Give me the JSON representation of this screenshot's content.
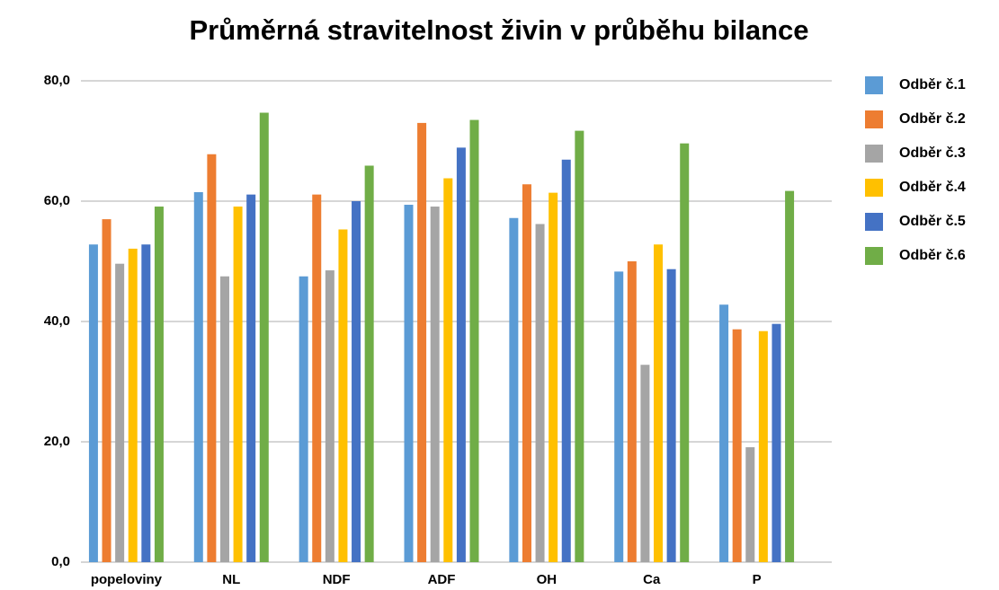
{
  "chart_data": {
    "type": "bar",
    "title": "Průměrná stravitelnost živin v průběhu bilance",
    "categories": [
      "popeloviny",
      "NL",
      "NDF",
      "ADF",
      "OH",
      "Ca",
      "P"
    ],
    "series": [
      {
        "name": "Odběr č.1",
        "color": "#5b9bd5",
        "values": [
          52.8,
          61.5,
          47.5,
          59.4,
          57.2,
          48.3,
          42.8
        ]
      },
      {
        "name": "Odběr č.2",
        "color": "#ed7d31",
        "values": [
          57.0,
          67.8,
          61.1,
          73.0,
          62.8,
          50.0,
          38.7
        ]
      },
      {
        "name": "Odběr č.3",
        "color": "#a5a5a5",
        "values": [
          49.6,
          47.5,
          48.5,
          59.1,
          56.2,
          32.8,
          19.1
        ]
      },
      {
        "name": "Odběr č.4",
        "color": "#ffc000",
        "values": [
          52.1,
          59.1,
          55.3,
          63.8,
          61.4,
          52.8,
          38.4
        ]
      },
      {
        "name": "Odběr č.5",
        "color": "#4472c4",
        "values": [
          52.8,
          61.1,
          60.0,
          68.9,
          66.9,
          48.7,
          39.6
        ]
      },
      {
        "name": "Odběr č.6",
        "color": "#70ad47",
        "values": [
          59.1,
          74.7,
          65.9,
          73.5,
          71.7,
          69.6,
          61.7
        ]
      }
    ],
    "ylim": [
      0,
      80
    ],
    "yticks": [
      {
        "value": 0,
        "label": "0,0"
      },
      {
        "value": 20,
        "label": "20,0"
      },
      {
        "value": 40,
        "label": "40,0"
      },
      {
        "value": 60,
        "label": "60,0"
      },
      {
        "value": 80,
        "label": "80,0"
      }
    ],
    "grid": true,
    "legend": "right"
  }
}
